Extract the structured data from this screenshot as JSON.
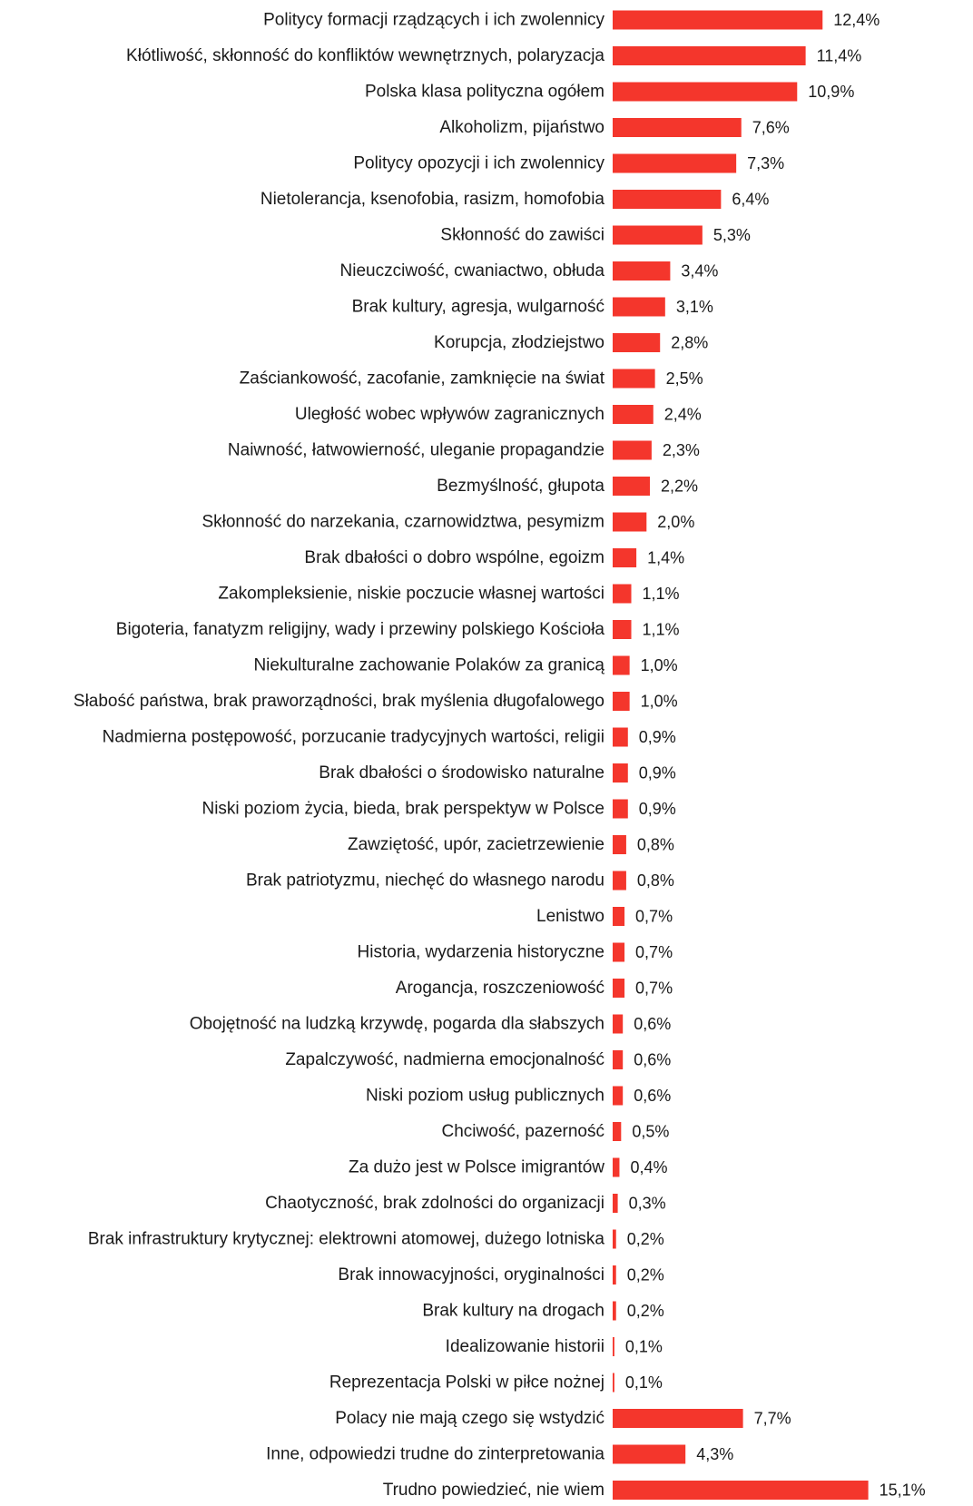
{
  "chart_data": {
    "type": "bar",
    "orientation": "horizontal",
    "bar_color": "#f4362c",
    "grid": false,
    "legend": "none",
    "xlim": [
      0,
      16
    ],
    "categories": [
      "Politycy formacji rządzących i ich zwolennicy",
      "Kłótliwość, skłonność do konfliktów wewnętrznych, polaryzacja",
      "Polska klasa polityczna ogółem",
      "Alkoholizm, pijaństwo",
      "Politycy opozycji i ich zwolennicy",
      "Nietolerancja, ksenofobia, rasizm, homofobia",
      "Skłonność do zawiści",
      "Nieuczciwość, cwaniactwo, obłuda",
      "Brak kultury, agresja, wulgarność",
      "Korupcja, złodziejstwo",
      "Zaściankowość, zacofanie, zamknięcie na świat",
      "Uległość wobec wpływów zagranicznych",
      "Naiwność, łatwowierność, uleganie propagandzie",
      "Bezmyślność, głupota",
      "Skłonność do narzekania, czarnowidztwa, pesymizm",
      "Brak dbałości o dobro wspólne, egoizm",
      "Zakompleksienie, niskie poczucie własnej wartości",
      "Bigoteria, fanatyzm religijny, wady i przewiny polskiego Kościoła",
      "Niekulturalne zachowanie Polaków za granicą",
      "Słabość państwa, brak praworządności, brak myślenia długofalowego",
      "Nadmierna postępowość, porzucanie tradycyjnych wartości, religii",
      "Brak dbałości o środowisko naturalne",
      "Niski poziom życia, bieda, brak perspektyw w Polsce",
      "Zawziętość, upór, zacietrzewienie",
      "Brak patriotyzmu, niechęć do własnego narodu",
      "Lenistwo",
      "Historia, wydarzenia historyczne",
      "Arogancja, roszczeniowość",
      "Obojętność na ludzką krzywdę, pogarda dla słabszych",
      "Zapalczywość, nadmierna emocjonalność",
      "Niski poziom usług publicznych",
      "Chciwość, pazerność",
      "Za dużo jest w Polsce imigrantów",
      "Chaotyczność, brak zdolności do organizacji",
      "Brak infrastruktury krytycznej: elektrowni atomowej, dużego lotniska",
      "Brak innowacyjności, oryginalności",
      "Brak kultury na drogach",
      "Idealizowanie historii",
      "Reprezentacja Polski w piłce nożnej",
      "Polacy nie mają czego się wstydzić",
      "Inne, odpowiedzi trudne do zinterpretowania",
      "Trudno powiedzieć, nie wiem"
    ],
    "values": [
      12.4,
      11.4,
      10.9,
      7.6,
      7.3,
      6.4,
      5.3,
      3.4,
      3.1,
      2.8,
      2.5,
      2.4,
      2.3,
      2.2,
      2.0,
      1.4,
      1.1,
      1.1,
      1.0,
      1.0,
      0.9,
      0.9,
      0.9,
      0.8,
      0.8,
      0.7,
      0.7,
      0.7,
      0.6,
      0.6,
      0.6,
      0.5,
      0.4,
      0.3,
      0.2,
      0.2,
      0.2,
      0.1,
      0.1,
      7.7,
      4.3,
      15.1
    ],
    "value_labels": [
      "12,4%",
      "11,4%",
      "10,9%",
      "7,6%",
      "7,3%",
      "6,4%",
      "5,3%",
      "3,4%",
      "3,1%",
      "2,8%",
      "2,5%",
      "2,4%",
      "2,3%",
      "2,2%",
      "2,0%",
      "1,4%",
      "1,1%",
      "1,1%",
      "1,0%",
      "1,0%",
      "0,9%",
      "0,9%",
      "0,9%",
      "0,8%",
      "0,8%",
      "0,7%",
      "0,7%",
      "0,7%",
      "0,6%",
      "0,6%",
      "0,6%",
      "0,5%",
      "0,4%",
      "0,3%",
      "0,2%",
      "0,2%",
      "0,2%",
      "0,1%",
      "0,1%",
      "7,7%",
      "4,3%",
      "15,1%"
    ]
  }
}
